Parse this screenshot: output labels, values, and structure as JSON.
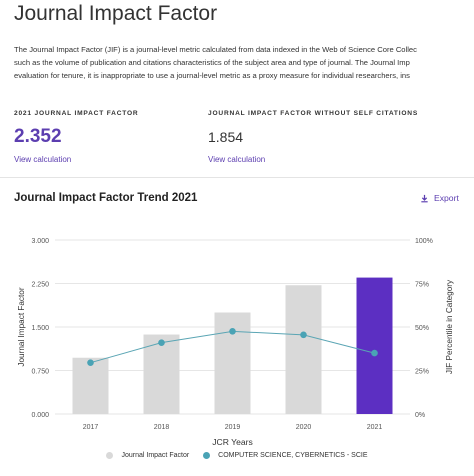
{
  "page": {
    "title": "Journal Impact Factor",
    "description_lines": [
      "The Journal Impact Factor (JIF) is a journal-level metric calculated from data indexed in the Web of Science Core Collec",
      "such as the volume of publication and citations characteristics of the subject area and type of journal. The Journal Imp",
      "evaluation for tenure, it is inappropriate to use a journal-level metric as a proxy measure for individual researchers, ins"
    ]
  },
  "metrics": {
    "jif": {
      "label": "2021 JOURNAL IMPACT FACTOR",
      "value": "2.352",
      "link": "View calculation"
    },
    "jif_without_self": {
      "label": "JOURNAL IMPACT FACTOR WITHOUT SELF CITATIONS",
      "value": "1.854",
      "link": "View calculation"
    }
  },
  "chart_section": {
    "title": "Journal Impact Factor Trend 2021",
    "export_label": "Export",
    "export_icon": "download-icon"
  },
  "chart_data": {
    "type": "bar",
    "title": "Journal Impact Factor Trend 2021",
    "categories": [
      "2017",
      "2018",
      "2019",
      "2020",
      "2021"
    ],
    "xlabel": "JCR Years",
    "ylabel": "Journal Impact Factor",
    "y2label": "JIF Percentile in Category",
    "ylim": [
      0,
      3.0
    ],
    "yticks": [
      "0.000",
      "0.750",
      "1.500",
      "2.250",
      "3.000"
    ],
    "y2lim": [
      0,
      100
    ],
    "y2ticks": [
      "0%",
      "25%",
      "50%",
      "75%",
      "100%"
    ],
    "grid": true,
    "legend_position": "bottom",
    "series": [
      {
        "name": "Journal Impact Factor",
        "type": "bar",
        "axis": "left",
        "values": [
          0.97,
          1.37,
          1.75,
          2.22,
          2.352
        ],
        "color": "#d9d9d9",
        "highlight_color": "#5c2fc2",
        "highlight_index": 4
      },
      {
        "name": "COMPUTER SCIENCE, CYBERNETICS - SCIE",
        "type": "line",
        "axis": "right",
        "values": [
          29.5,
          41.0,
          47.5,
          45.5,
          35.0
        ],
        "color": "#5aa5b4",
        "point_color": "#4aa3b5"
      }
    ]
  }
}
